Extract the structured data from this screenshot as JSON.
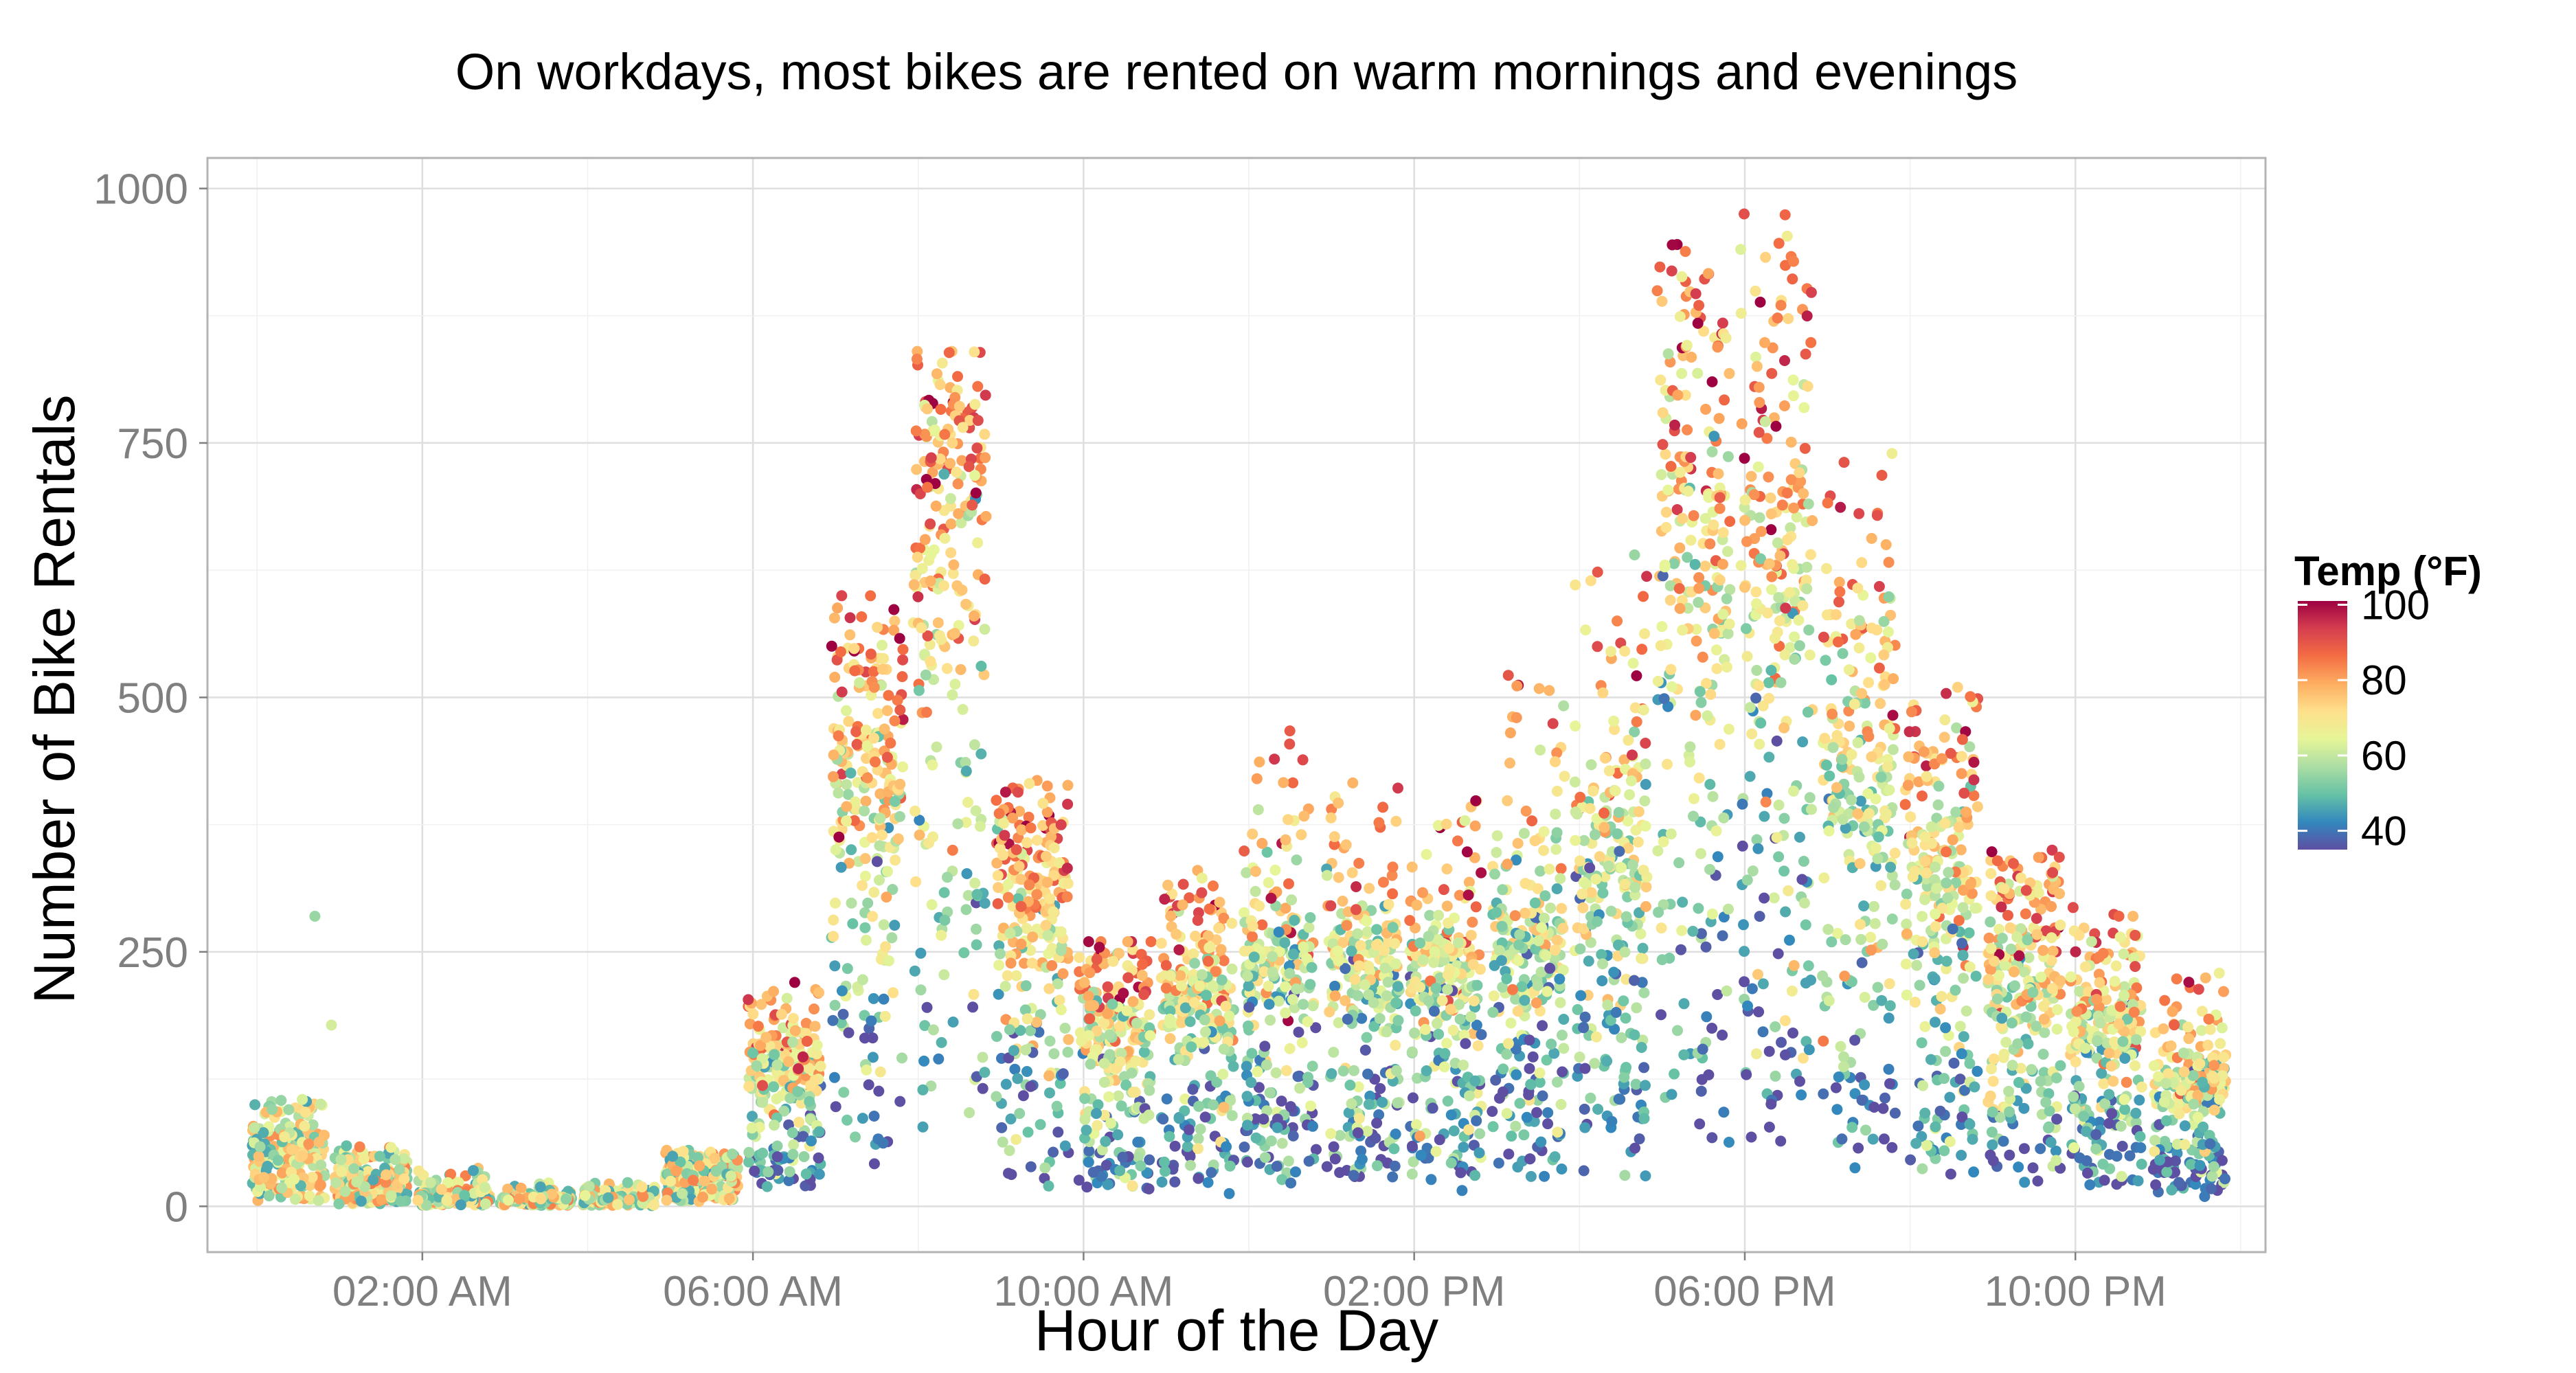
{
  "chart_data": {
    "type": "scatter",
    "title": "On workdays, most bikes are rented on warm mornings and evenings",
    "xlabel": "Hour of the Day",
    "ylabel": "Number of Bike Rentals",
    "x_unit": "hour of day",
    "xlim": [
      -0.6,
      24.3
    ],
    "ylim": [
      -45,
      1030
    ],
    "x_ticks": [
      {
        "value": 2,
        "label": "02:00 AM"
      },
      {
        "value": 6,
        "label": "06:00 AM"
      },
      {
        "value": 10,
        "label": "10:00 AM"
      },
      {
        "value": 14,
        "label": "02:00 PM"
      },
      {
        "value": 18,
        "label": "06:00 PM"
      },
      {
        "value": 22,
        "label": "10:00 PM"
      }
    ],
    "y_ticks": [
      {
        "value": 0,
        "label": "0"
      },
      {
        "value": 250,
        "label": "250"
      },
      {
        "value": 500,
        "label": "500"
      },
      {
        "value": 750,
        "label": "750"
      },
      {
        "value": 1000,
        "label": "1000"
      }
    ],
    "grid": true,
    "legend": {
      "title": "Temp (°F)",
      "position": "right",
      "range": [
        35,
        101
      ],
      "ticks": [
        {
          "value": 40,
          "label": "40"
        },
        {
          "value": 60,
          "label": "60"
        },
        {
          "value": 80,
          "label": "80"
        },
        {
          "value": 100,
          "label": "100"
        }
      ],
      "palette": [
        "#5e4fa2",
        "#3288bd",
        "#66c2a5",
        "#abdda4",
        "#e6f598",
        "#fee08b",
        "#fdae61",
        "#f46d43",
        "#d53e4f",
        "#9e0142"
      ]
    },
    "hourly_profile": [
      {
        "hour": 0,
        "median": 45,
        "p90": 90,
        "max": 105
      },
      {
        "hour": 1,
        "median": 18,
        "p90": 45,
        "max": 60
      },
      {
        "hour": 2,
        "median": 8,
        "p90": 22,
        "max": 40
      },
      {
        "hour": 3,
        "median": 5,
        "p90": 12,
        "max": 25
      },
      {
        "hour": 4,
        "median": 6,
        "p90": 15,
        "max": 25
      },
      {
        "hour": 5,
        "median": 25,
        "p90": 45,
        "max": 55
      },
      {
        "hour": 6,
        "median": 110,
        "p90": 180,
        "max": 220
      },
      {
        "hour": 7,
        "median": 380,
        "p90": 520,
        "max": 600
      },
      {
        "hour": 8,
        "median": 570,
        "p90": 740,
        "max": 840
      },
      {
        "hour": 9,
        "median": 260,
        "p90": 360,
        "max": 420
      },
      {
        "hour": 10,
        "median": 140,
        "p90": 230,
        "max": 260
      },
      {
        "hour": 11,
        "median": 160,
        "p90": 280,
        "max": 330
      },
      {
        "hour": 12,
        "median": 190,
        "p90": 320,
        "max": 470
      },
      {
        "hour": 13,
        "median": 190,
        "p90": 320,
        "max": 420
      },
      {
        "hour": 14,
        "median": 180,
        "p90": 300,
        "max": 400
      },
      {
        "hour": 15,
        "median": 200,
        "p90": 330,
        "max": 530
      },
      {
        "hour": 16,
        "median": 280,
        "p90": 430,
        "max": 640
      },
      {
        "hour": 17,
        "median": 520,
        "p90": 850,
        "max": 950
      },
      {
        "hour": 18,
        "median": 500,
        "p90": 820,
        "max": 975
      },
      {
        "hour": 19,
        "median": 350,
        "p90": 560,
        "max": 740
      },
      {
        "hour": 20,
        "median": 250,
        "p90": 420,
        "max": 510
      },
      {
        "hour": 21,
        "median": 190,
        "p90": 310,
        "max": 350
      },
      {
        "hour": 22,
        "median": 140,
        "p90": 240,
        "max": 300
      },
      {
        "hour": 23,
        "median": 90,
        "p90": 170,
        "max": 230
      }
    ],
    "outliers": [
      {
        "x": 0.7,
        "y": 285,
        "temp": 55
      },
      {
        "x": 0.9,
        "y": 178,
        "temp": 62
      }
    ]
  }
}
